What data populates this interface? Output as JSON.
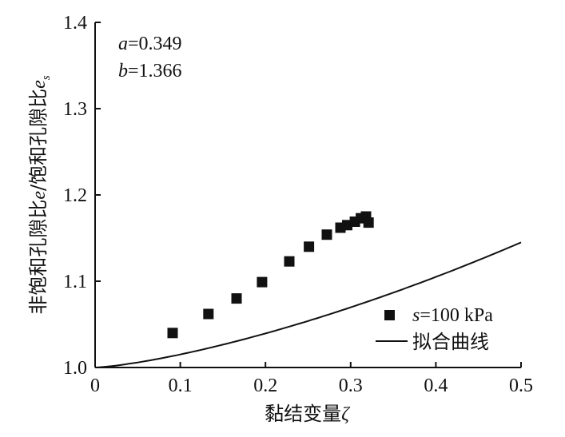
{
  "chart_data": {
    "type": "scatter",
    "xlabel_main": "黏结变量",
    "xlabel_symbol": "ζ",
    "ylabel_parts": [
      "非饱和孔隙比",
      "e",
      "/饱和孔隙比",
      "e",
      "s"
    ],
    "xlim": [
      0,
      0.5
    ],
    "ylim": [
      1.0,
      1.4
    ],
    "x_ticks": [
      "0",
      "0.1",
      "0.2",
      "0.3",
      "0.4",
      "0.5"
    ],
    "y_ticks": [
      "1.0",
      "1.1",
      "1.2",
      "1.3",
      "1.4"
    ],
    "annotations": [
      {
        "symbol": "a",
        "text": "=0.349"
      },
      {
        "symbol": "b",
        "text": "=1.366"
      }
    ],
    "fit": {
      "a": 0.349,
      "b": 1.366
    },
    "series": [
      {
        "name_symbol": "s",
        "name_rest": "=100 kPa",
        "marker": "square",
        "points": [
          [
            0.091,
            1.04
          ],
          [
            0.133,
            1.062
          ],
          [
            0.166,
            1.08
          ],
          [
            0.196,
            1.099
          ],
          [
            0.228,
            1.123
          ],
          [
            0.251,
            1.14
          ],
          [
            0.272,
            1.154
          ],
          [
            0.288,
            1.162
          ],
          [
            0.296,
            1.165
          ],
          [
            0.305,
            1.169
          ],
          [
            0.312,
            1.173
          ],
          [
            0.318,
            1.175
          ],
          [
            0.321,
            1.168
          ]
        ]
      }
    ],
    "line_legend": "拟合曲线",
    "colors": {
      "ink": "#111111"
    }
  }
}
